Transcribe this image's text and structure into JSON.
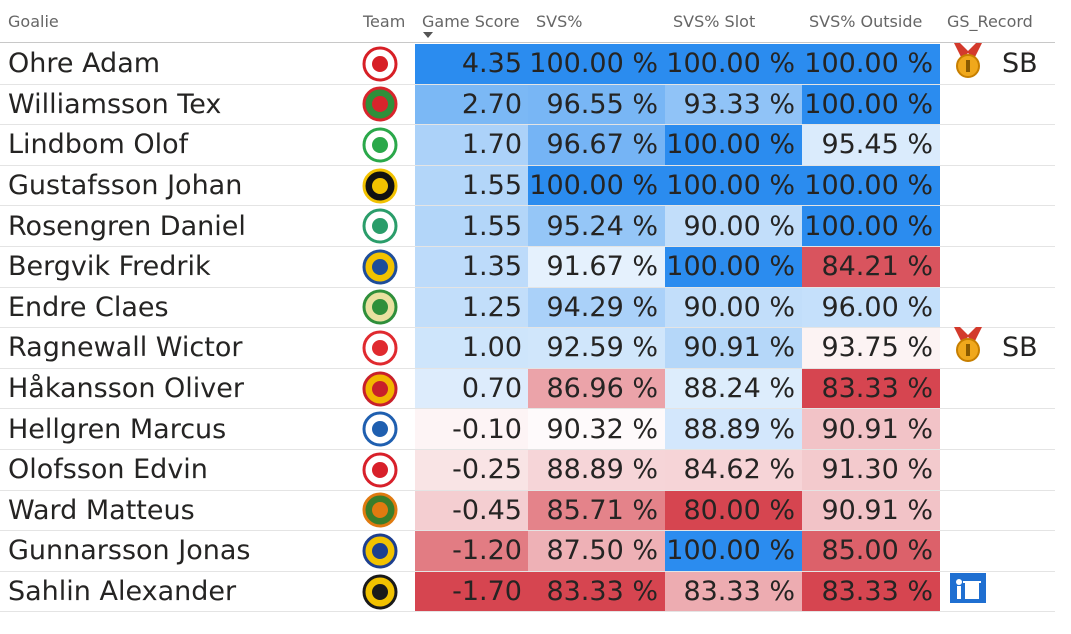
{
  "headers": {
    "goalie": "Goalie",
    "team": "Team",
    "game_score": "Game Score",
    "svs": "SVS%",
    "svs_slot": "SVS% Slot",
    "svs_outside": "SVS% Outside",
    "gs_record": "GS_Record"
  },
  "sort": {
    "column": "game_score",
    "direction": "descending",
    "icon": "sort-descending-icon"
  },
  "colors": {
    "header_text": "#666666",
    "cell_text": "#252423",
    "scale_max": "#2b8cef",
    "scale_mid": "#ffffff",
    "scale_min": "#d64550"
  },
  "rows": [
    {
      "goalie": "Ohre Adam",
      "team_logo": "red-horse-crest-icon",
      "logo_fg": "#d71f26",
      "logo_bg": "#ffffff",
      "game_score": "4.35",
      "svs": "100.00 %",
      "svs_slot": "100.00 %",
      "svs_outside": "100.00 %",
      "gs": 4.35,
      "svs_v": 100.0,
      "slot_v": 100.0,
      "out_v": 100.0,
      "record_icon": "medal-icon",
      "record_text": "SB"
    },
    {
      "goalie": "Williamsson Tex",
      "team_logo": "red-green-shield-icon",
      "logo_fg": "#d8252c",
      "logo_bg": "#2f8f3a",
      "game_score": "2.70",
      "svs": "96.55 %",
      "svs_slot": "93.33 %",
      "svs_outside": "100.00 %",
      "gs": 2.7,
      "svs_v": 96.55,
      "slot_v": 93.33,
      "out_v": 100.0,
      "record_icon": "",
      "record_text": ""
    },
    {
      "goalie": "Lindbom Olof",
      "team_logo": "green-circle-crest-icon",
      "logo_fg": "#2aa84a",
      "logo_bg": "#ffffff",
      "game_score": "1.70",
      "svs": "96.67 %",
      "svs_slot": "100.00 %",
      "svs_outside": "95.45 %",
      "gs": 1.7,
      "svs_v": 96.67,
      "slot_v": 100.0,
      "out_v": 95.45,
      "record_icon": "",
      "record_text": ""
    },
    {
      "goalie": "Gustafsson Johan",
      "team_logo": "yellow-black-v-icon",
      "logo_fg": "#f2c200",
      "logo_bg": "#111111",
      "game_score": "1.55",
      "svs": "100.00 %",
      "svs_slot": "100.00 %",
      "svs_outside": "100.00 %",
      "gs": 1.55,
      "svs_v": 100.0,
      "slot_v": 100.0,
      "out_v": 100.0,
      "record_icon": "",
      "record_text": ""
    },
    {
      "goalie": "Rosengren Daniel",
      "team_logo": "green-tower-crest-icon",
      "logo_fg": "#2a9d6a",
      "logo_bg": "#ffffff",
      "game_score": "1.55",
      "svs": "95.24 %",
      "svs_slot": "90.00 %",
      "svs_outside": "100.00 %",
      "gs": 1.55,
      "svs_v": 95.24,
      "slot_v": 90.0,
      "out_v": 100.0,
      "record_icon": "",
      "record_text": ""
    },
    {
      "goalie": "Bergvik Fredrik",
      "team_logo": "blue-yellow-shield-icon",
      "logo_fg": "#1e4d9a",
      "logo_bg": "#f2c200",
      "game_score": "1.35",
      "svs": "91.67 %",
      "svs_slot": "100.00 %",
      "svs_outside": "84.21 %",
      "gs": 1.35,
      "svs_v": 91.67,
      "slot_v": 100.0,
      "out_v": 84.21,
      "record_icon": "",
      "record_text": ""
    },
    {
      "goalie": "Endre Claes",
      "team_logo": "green-round-crest-icon",
      "logo_fg": "#2f8f3a",
      "logo_bg": "#e9e1a0",
      "game_score": "1.25",
      "svs": "94.29 %",
      "svs_slot": "90.00 %",
      "svs_outside": "96.00 %",
      "gs": 1.25,
      "svs_v": 94.29,
      "slot_v": 90.0,
      "out_v": 96.0,
      "record_icon": "",
      "record_text": ""
    },
    {
      "goalie": "Ragnewall Wictor",
      "team_logo": "red-white-circle-crest-icon",
      "logo_fg": "#e02a2f",
      "logo_bg": "#ffffff",
      "game_score": "1.00",
      "svs": "92.59 %",
      "svs_slot": "90.91 %",
      "svs_outside": "93.75 %",
      "gs": 1.0,
      "svs_v": 92.59,
      "slot_v": 90.91,
      "out_v": 93.75,
      "record_icon": "medal-icon",
      "record_text": "SB"
    },
    {
      "goalie": "Håkansson Oliver",
      "team_logo": "red-yellow-round-crest-icon",
      "logo_fg": "#c8202a",
      "logo_bg": "#f2b600",
      "game_score": "0.70",
      "svs": "86.96 %",
      "svs_slot": "88.24 %",
      "svs_outside": "83.33 %",
      "gs": 0.7,
      "svs_v": 86.96,
      "slot_v": 88.24,
      "out_v": 83.33,
      "record_icon": "",
      "record_text": ""
    },
    {
      "goalie": "Hellgren Marcus",
      "team_logo": "blue-white-shield-icon",
      "logo_fg": "#1f5fb0",
      "logo_bg": "#ffffff",
      "game_score": "-0.10",
      "svs": "90.32 %",
      "svs_slot": "88.89 %",
      "svs_outside": "90.91 %",
      "gs": -0.1,
      "svs_v": 90.32,
      "slot_v": 88.89,
      "out_v": 90.91,
      "record_icon": "",
      "record_text": ""
    },
    {
      "goalie": "Olofsson Edvin",
      "team_logo": "red-white-v-crest-icon",
      "logo_fg": "#d8202a",
      "logo_bg": "#ffffff",
      "game_score": "-0.25",
      "svs": "88.89 %",
      "svs_slot": "84.62 %",
      "svs_outside": "91.30 %",
      "gs": -0.25,
      "svs_v": 88.89,
      "slot_v": 84.62,
      "out_v": 91.3,
      "record_icon": "",
      "record_text": ""
    },
    {
      "goalie": "Ward Matteus",
      "team_logo": "orange-tiger-crest-icon",
      "logo_fg": "#e07a10",
      "logo_bg": "#3a7d2a",
      "game_score": "-0.45",
      "svs": "85.71 %",
      "svs_slot": "80.00 %",
      "svs_outside": "90.91 %",
      "gs": -0.45,
      "svs_v": 85.71,
      "slot_v": 80.0,
      "out_v": 90.91,
      "record_icon": "",
      "record_text": ""
    },
    {
      "goalie": "Gunnarsson Jonas",
      "team_logo": "hv71-logo-icon",
      "logo_fg": "#1d3f8f",
      "logo_bg": "#f2c200",
      "game_score": "-1.20",
      "svs": "87.50 %",
      "svs_slot": "100.00 %",
      "svs_outside": "85.00 %",
      "gs": -1.2,
      "svs_v": 87.5,
      "slot_v": 100.0,
      "out_v": 85.0,
      "record_icon": "",
      "record_text": ""
    },
    {
      "goalie": "Sahlin Alexander",
      "team_logo": "aik-crest-icon",
      "logo_fg": "#1a1a1a",
      "logo_bg": "#f2c200",
      "game_score": "-1.70",
      "svs": "83.33 %",
      "svs_slot": "83.33 %",
      "svs_outside": "83.33 %",
      "gs": -1.7,
      "svs_v": 83.33,
      "slot_v": 83.33,
      "out_v": 83.33,
      "record_icon": "trash-bin-icon",
      "record_text": ""
    }
  ]
}
